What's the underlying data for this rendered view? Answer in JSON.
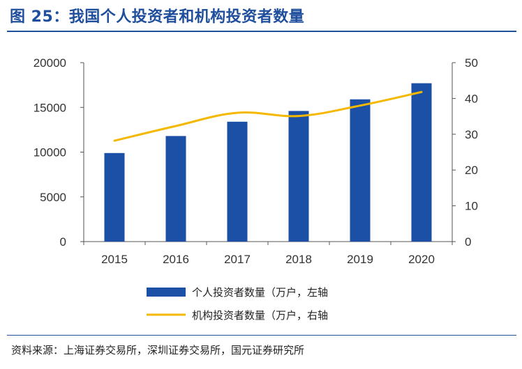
{
  "header": {
    "title": "图 25：我国个人投资者和机构投资者数量"
  },
  "footer": {
    "source": "资料来源：上海证券交易所，深圳证券交易所，国元证券研究所"
  },
  "colors": {
    "bar": "#1c4fa6",
    "line": "#f5b800",
    "title": "#1f4e9c"
  },
  "chart_data": {
    "type": "bar",
    "categories": [
      "2015",
      "2016",
      "2017",
      "2018",
      "2019",
      "2020"
    ],
    "series": [
      {
        "name": "个人投资者数量（万户，左轴",
        "type": "bar",
        "axis": "left",
        "values": [
          9900,
          11800,
          13400,
          14600,
          15900,
          17700
        ]
      },
      {
        "name": "机构投资者数量（万户，右轴",
        "type": "line",
        "axis": "right",
        "values": [
          28.2,
          32.3,
          36.0,
          35.1,
          38.0,
          41.8
        ]
      }
    ],
    "y_left": {
      "ticks": [
        "0",
        "5000",
        "10000",
        "15000",
        "20000"
      ],
      "range": [
        0,
        20000
      ]
    },
    "y_right": {
      "ticks": [
        "0",
        "10",
        "20",
        "30",
        "40",
        "50"
      ],
      "range": [
        0,
        50
      ]
    },
    "legend_position": "bottom",
    "grid": false
  }
}
